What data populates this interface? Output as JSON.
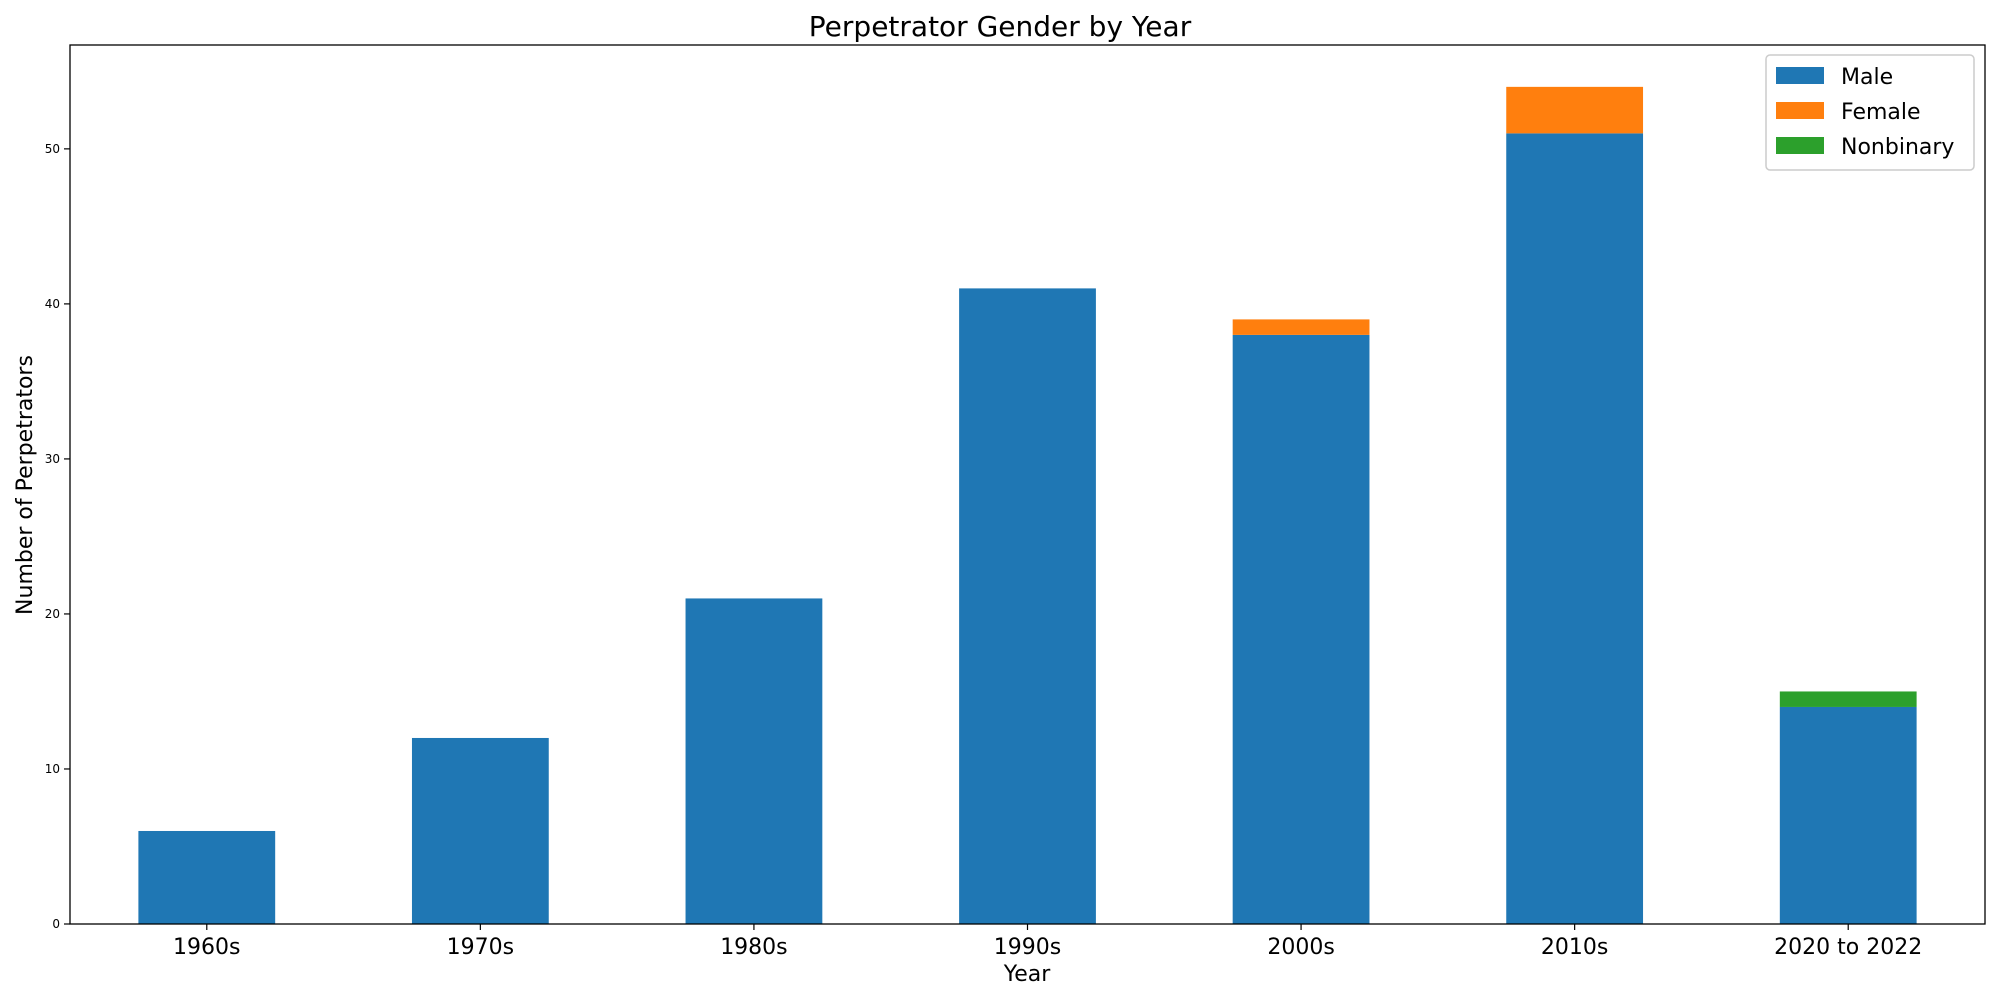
{
  "chart_data": {
    "type": "bar",
    "stacked": true,
    "title": "Perpetrator Gender by Year",
    "xlabel": "Year",
    "ylabel": "Number of Perpetrators",
    "categories": [
      "1960s",
      "1970s",
      "1980s",
      "1990s",
      "2000s",
      "2010s",
      "2020 to 2022"
    ],
    "series": [
      {
        "name": "Male",
        "color": "#1f77b4",
        "values": [
          6,
          12,
          21,
          41,
          38,
          51,
          14
        ]
      },
      {
        "name": "Female",
        "color": "#ff7f0e",
        "values": [
          0,
          0,
          0,
          0,
          1,
          3,
          0
        ]
      },
      {
        "name": "Nonbinary",
        "color": "#2ca02c",
        "values": [
          0,
          0,
          0,
          0,
          0,
          0,
          1
        ]
      }
    ],
    "ylim": [
      0,
      56.7
    ],
    "yticks": [
      0,
      10,
      20,
      30,
      40,
      50
    ],
    "grid": false,
    "legend_position": "top-right"
  }
}
